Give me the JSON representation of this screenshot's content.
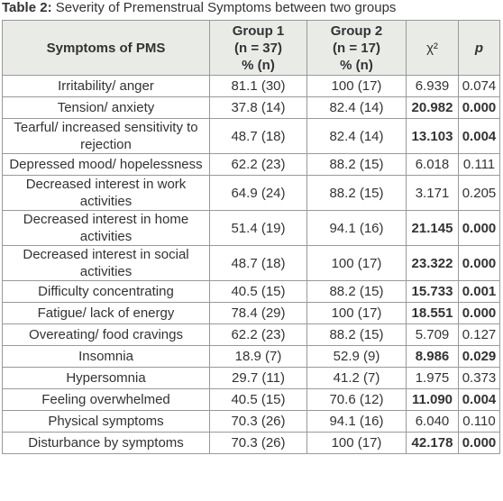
{
  "caption": {
    "label": "Table 2:",
    "text": "Severity of Premenstrual Symptoms between two groups"
  },
  "table": {
    "headers": [
      [
        "Symptoms of PMS"
      ],
      [
        "Group 1",
        "(n = 37)",
        "% (n)"
      ],
      [
        "Group 2",
        "(n = 17)",
        "% (n)"
      ],
      [
        "χ²"
      ],
      [
        "p"
      ]
    ],
    "rows": [
      [
        "Irritability/ anger",
        "81.1 (30)",
        "100 (17)",
        "6.939",
        "0.074"
      ],
      [
        "Tension/ anxiety",
        "37.8 (14)",
        "82.4 (14)",
        "20.982",
        "0.000"
      ],
      [
        "Tearful/ increased sensitivity to rejection",
        "48.7 (18)",
        "82.4 (14)",
        "13.103",
        "0.004"
      ],
      [
        "Depressed mood/ hopelessness",
        "62.2 (23)",
        "88.2 (15)",
        "6.018",
        "0.111"
      ],
      [
        "Decreased interest in work activities",
        "64.9 (24)",
        "88.2 (15)",
        "3.171",
        "0.205"
      ],
      [
        "Decreased interest in home activities",
        "51.4 (19)",
        "94.1 (16)",
        "21.145",
        "0.000"
      ],
      [
        "Decreased interest in social activities",
        "48.7 (18)",
        "100 (17)",
        "23.322",
        "0.000"
      ],
      [
        "Difficulty concentrating",
        "40.5 (15)",
        "88.2 (15)",
        "15.733",
        "0.001"
      ],
      [
        "Fatigue/ lack of energy",
        "78.4 (29)",
        "100 (17)",
        "18.551",
        "0.000"
      ],
      [
        "Overeating/ food cravings",
        "62.2 (23)",
        "88.2 (15)",
        "5.709",
        "0.127"
      ],
      [
        "Insomnia",
        "18.9 (7)",
        "52.9 (9)",
        "8.986",
        "0.029"
      ],
      [
        "Hypersomnia",
        "29.7 (11)",
        "41.2 (7)",
        "1.975",
        "0.373"
      ],
      [
        "Feeling overwhelmed",
        "40.5 (15)",
        "70.6 (12)",
        "11.090",
        "0.004"
      ],
      [
        "Physical symptoms",
        "70.3 (26)",
        "94.1 (16)",
        "6.040",
        "0.110"
      ],
      [
        "Disturbance by symptoms",
        "70.3 (26)",
        "100 (17)",
        "42.178",
        "0.000"
      ]
    ],
    "significant": [
      false,
      true,
      true,
      false,
      false,
      true,
      true,
      true,
      true,
      false,
      true,
      false,
      true,
      false,
      true
    ]
  }
}
